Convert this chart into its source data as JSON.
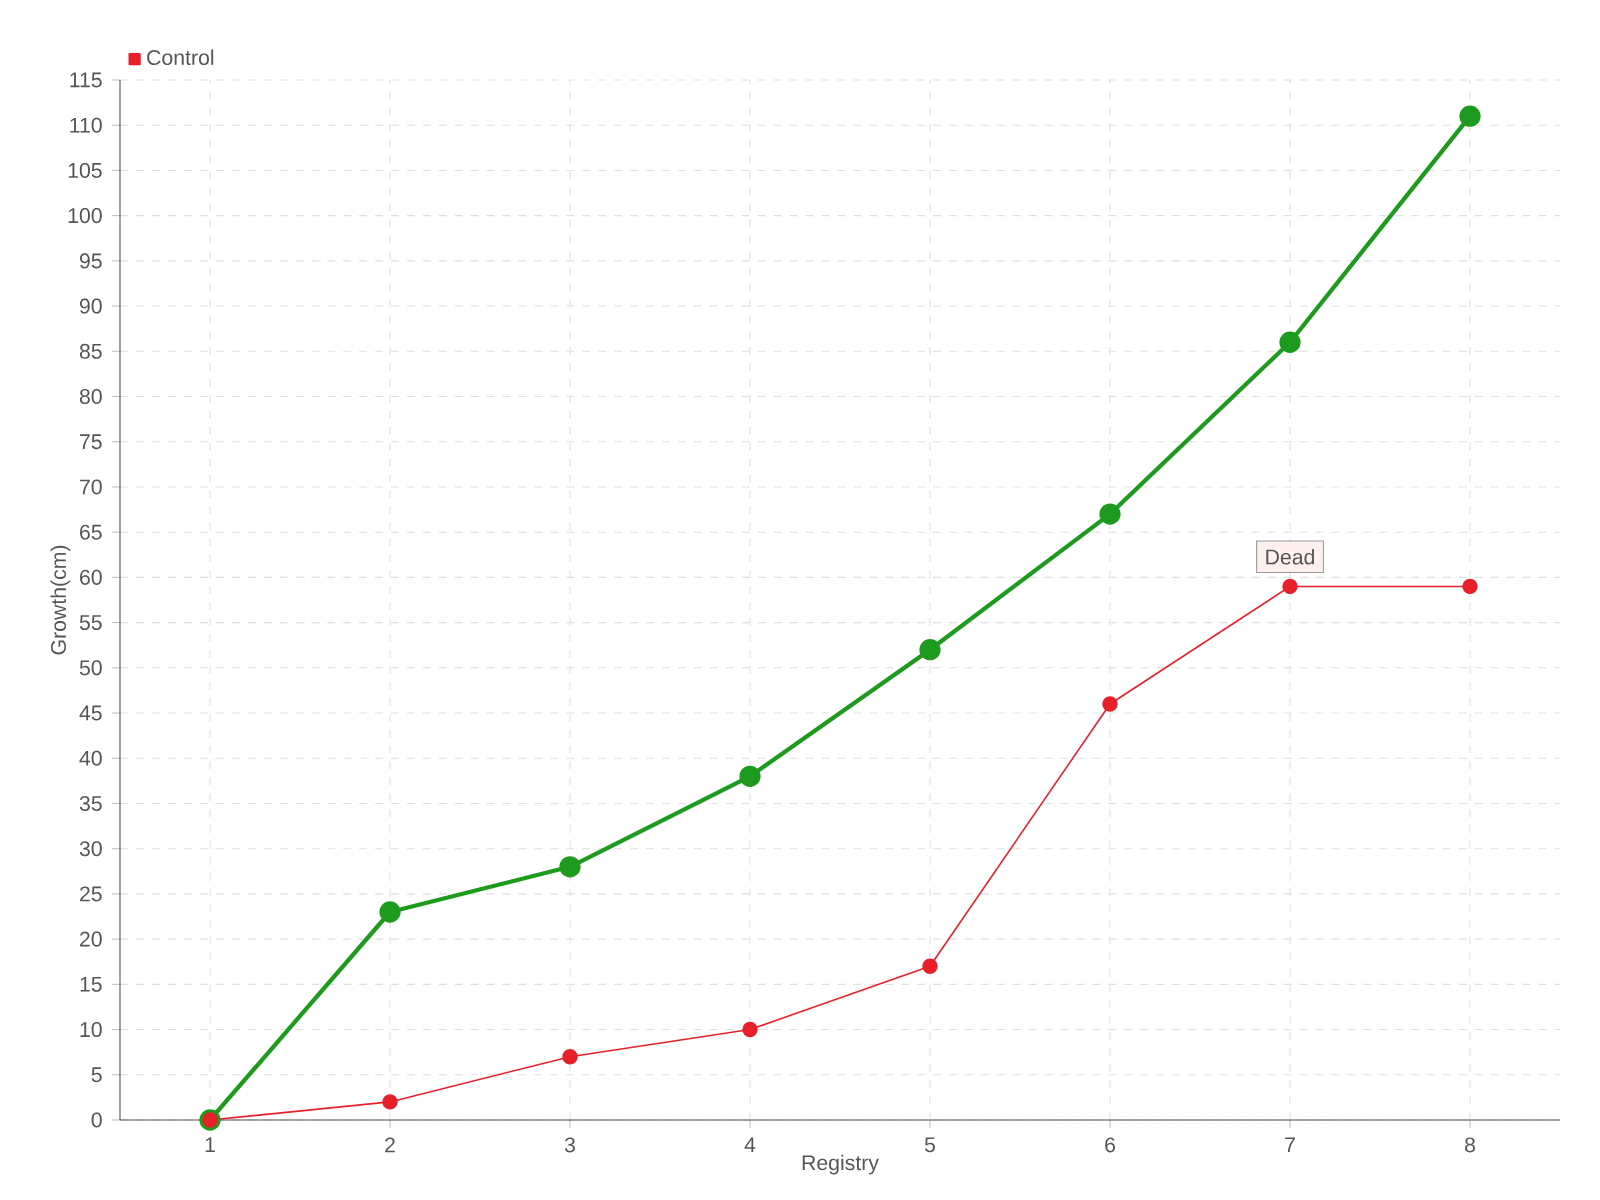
{
  "chart_data": {
    "type": "line",
    "xlabel": "Registry",
    "ylabel": "Growth(cm)",
    "x": [
      1,
      2,
      3,
      4,
      5,
      6,
      7,
      8
    ],
    "series": [
      {
        "color": "#1e9a1e",
        "values": [
          0,
          23,
          28,
          38,
          52,
          67,
          86,
          111
        ]
      },
      {
        "name": "Control",
        "color": "#e8202a",
        "values": [
          0,
          2,
          7,
          10,
          17,
          46,
          59,
          59
        ]
      }
    ],
    "xlim": [
      0.5,
      8.5
    ],
    "xticks": [
      1,
      2,
      3,
      4,
      5,
      6,
      7,
      8
    ],
    "ylim": [
      0,
      115
    ],
    "yticks": [
      0,
      5,
      10,
      15,
      20,
      25,
      30,
      35,
      40,
      45,
      50,
      55,
      60,
      65,
      70,
      75,
      80,
      85,
      90,
      95,
      100,
      105,
      110,
      115
    ],
    "grid": true,
    "legend": "top left",
    "marker": "circle",
    "line_style": "solid",
    "annotations": [
      {
        "text": "Dead",
        "x": 7,
        "y": 59
      }
    ]
  }
}
